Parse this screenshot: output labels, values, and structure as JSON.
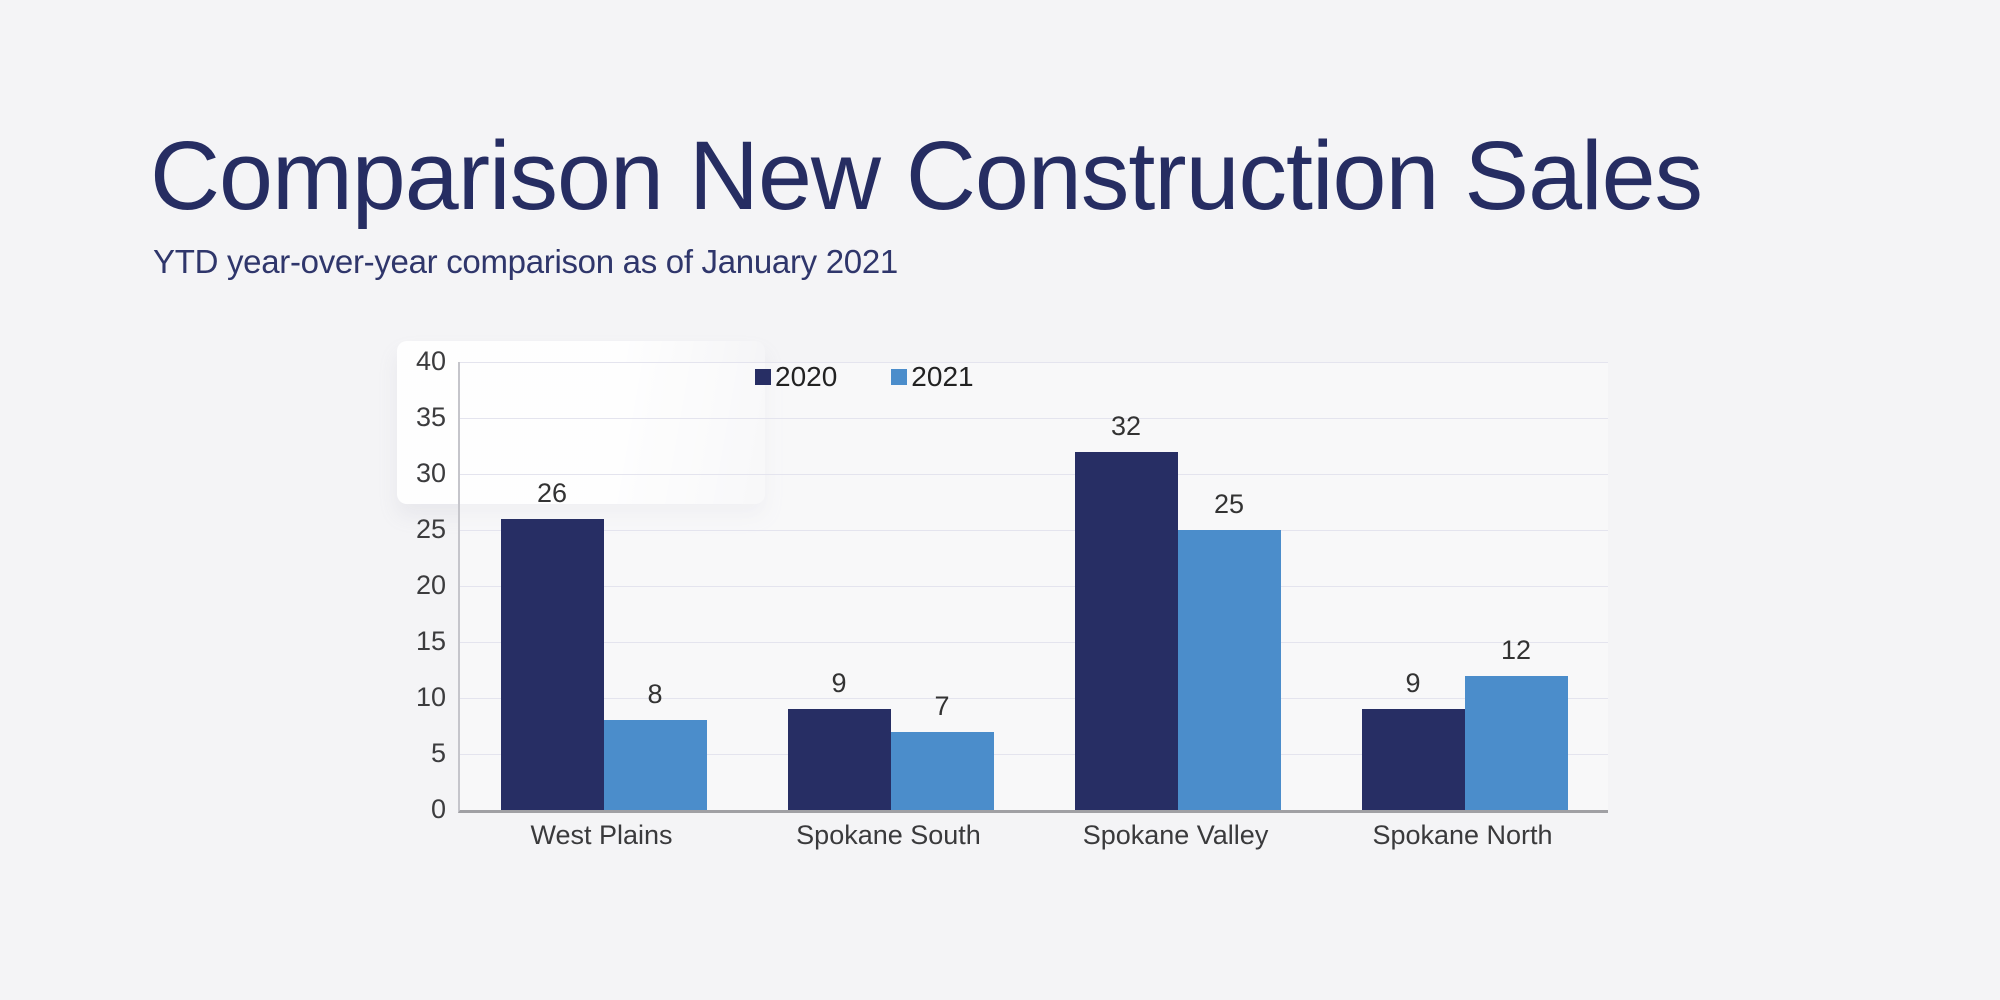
{
  "page": {
    "background": "#f4f4f6"
  },
  "header": {
    "title": "Comparison New Construction Sales",
    "subtitle": "YTD year-over-year comparison as of January 2021"
  },
  "colors": {
    "title_text": "#262d62",
    "series_2020": "#272e64",
    "series_2021": "#4b8dcb",
    "gridline": "#e4e4ee",
    "axis_baseline": "#a0a0a4",
    "axis_left_line": "#c5c5cb",
    "label_text": "#3a3a3c"
  },
  "chart_data": {
    "type": "bar",
    "title": "Comparison New Construction Sales",
    "subtitle": "YTD year-over-year comparison as of January 2021",
    "categories": [
      "West Plains",
      "Spokane South",
      "Spokane Valley",
      "Spokane North"
    ],
    "series": [
      {
        "name": "2020",
        "color": "#272e64",
        "values": [
          26,
          9,
          32,
          9
        ]
      },
      {
        "name": "2021",
        "color": "#4b8dcb",
        "values": [
          8,
          7,
          25,
          12
        ]
      }
    ],
    "y_axis": {
      "min": 0,
      "max": 40,
      "tick_interval": 5,
      "ticks": [
        0,
        5,
        10,
        15,
        20,
        25,
        30,
        35,
        40
      ]
    },
    "grid": "horizontal",
    "legend_position": "top-center",
    "legend_entries": [
      "2020",
      "2021"
    ],
    "data_labels": true,
    "data_label_values": {
      "2020": [
        26,
        9,
        32,
        9
      ],
      "2021": [
        8,
        7,
        25,
        12
      ]
    }
  }
}
